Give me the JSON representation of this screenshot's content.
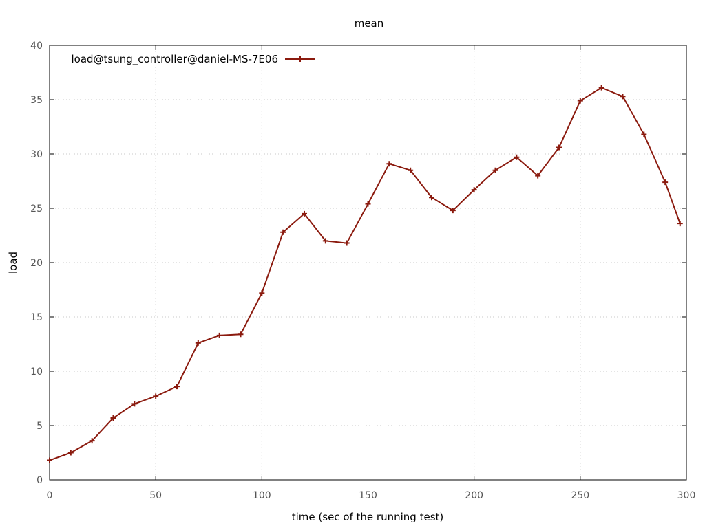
{
  "chart_data": {
    "type": "line",
    "title": "mean",
    "xlabel": "time (sec of the running test)",
    "ylabel": "load",
    "xlim": [
      0,
      300
    ],
    "ylim": [
      0,
      40
    ],
    "xticks": [
      0,
      50,
      100,
      150,
      200,
      250,
      300
    ],
    "yticks": [
      0,
      5,
      10,
      15,
      20,
      25,
      30,
      35,
      40
    ],
    "grid": true,
    "legend_position": "top-left",
    "series": [
      {
        "name": "load@tsung_controller@daniel-MS-7E06",
        "color": "#8b1a0e",
        "marker": "plus",
        "x": [
          0,
          10,
          20,
          30,
          40,
          50,
          60,
          70,
          80,
          90,
          100,
          110,
          120,
          130,
          140,
          150,
          160,
          170,
          180,
          190,
          200,
          210,
          220,
          230,
          240,
          250,
          260,
          270,
          280,
          290,
          297
        ],
        "y": [
          1.8,
          2.5,
          3.6,
          5.7,
          7.0,
          7.7,
          8.6,
          12.6,
          13.3,
          13.4,
          17.2,
          22.8,
          24.5,
          22.0,
          21.8,
          25.4,
          29.1,
          28.5,
          26.0,
          24.8,
          26.7,
          28.5,
          29.7,
          28.0,
          30.6,
          34.9,
          36.1,
          35.3,
          31.8,
          27.4,
          23.6
        ]
      }
    ]
  }
}
